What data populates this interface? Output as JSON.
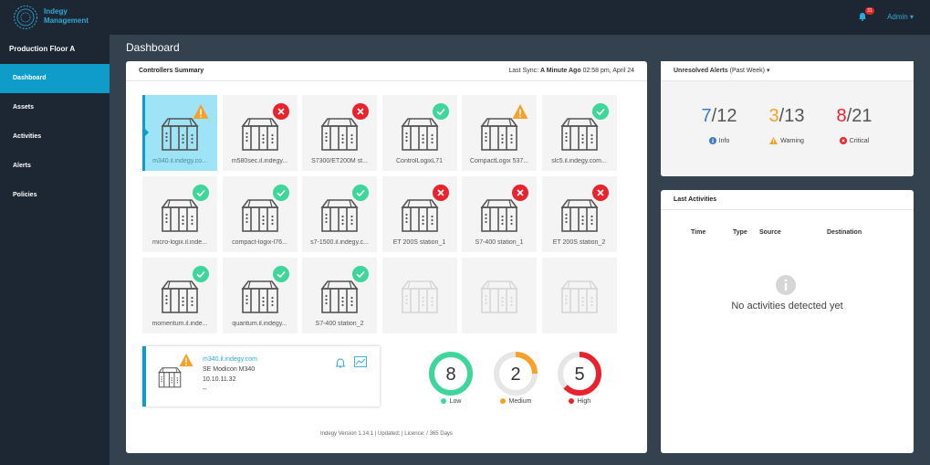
{
  "app": {
    "brand_line1": "Indegy",
    "brand_line2": "Management",
    "notification_count": "31",
    "user": "Admin"
  },
  "sidebar": {
    "site": "Production Floor A",
    "items": [
      {
        "label": "Dashboard",
        "active": true
      },
      {
        "label": "Assets"
      },
      {
        "label": "Activities"
      },
      {
        "label": "Alerts"
      },
      {
        "label": "Policies"
      }
    ]
  },
  "page": {
    "title": "Dashboard"
  },
  "controllers": {
    "title": "Controllers Summary",
    "last_sync_label": "Last Sync:",
    "last_sync_value": "A Minute Ago",
    "last_sync_time": "02:58 pm, April 24",
    "tiles": [
      {
        "label": "m340.il.indegy.co...",
        "status": "warning"
      },
      {
        "label": "m580sec.il.indegy...",
        "status": "error"
      },
      {
        "label": "S7300/ET200M st...",
        "status": "error"
      },
      {
        "label": "ControlLogixL71",
        "status": "ok"
      },
      {
        "label": "CompactLogix 537...",
        "status": "warning"
      },
      {
        "label": "slc5.il.indegy.com...",
        "status": "ok"
      },
      {
        "label": "micro-logix.il.inde...",
        "status": "ok"
      },
      {
        "label": "compact-logix-l76...",
        "status": "ok"
      },
      {
        "label": "s7-1500.il.indegy.c...",
        "status": "ok"
      },
      {
        "label": "ET 200S station_1",
        "status": "error"
      },
      {
        "label": "S7-400 station_1",
        "status": "error"
      },
      {
        "label": "ET 200S station_2",
        "status": "error"
      },
      {
        "label": "momentum.il.inde...",
        "status": "ok"
      },
      {
        "label": "quantum.il.indegy...",
        "status": "ok"
      },
      {
        "label": "S7-400 station_2",
        "status": "ok"
      }
    ],
    "detail": {
      "hostname": "m340.il.indegy.com",
      "model": "SE Modicon M340",
      "ip": "10.10.11.32",
      "extra": "--"
    },
    "risk": [
      {
        "value": 8,
        "label": "Low",
        "fraction": 1.0,
        "color": "#3fd69b"
      },
      {
        "value": 2,
        "label": "Medium",
        "fraction": 0.25,
        "color": "#f7a12c"
      },
      {
        "value": 5,
        "label": "High",
        "fraction": 0.63,
        "color": "#e8232d"
      }
    ],
    "footer": "Indegy Version 1.14.1   |   Updated:    |   Licence: / 365 Days"
  },
  "alerts": {
    "title": "Unresolved Alerts",
    "period": "(Past Week)",
    "items": [
      {
        "count": "7",
        "total": "/12",
        "label": "Info",
        "color": "#3a7bc8"
      },
      {
        "count": "3",
        "total": "/13",
        "label": "Warning",
        "color": "#f7a12c"
      },
      {
        "count": "8",
        "total": "/21",
        "label": "Critical",
        "color": "#e8232d"
      }
    ]
  },
  "activities": {
    "title": "Last Activities",
    "columns": [
      "Time",
      "Type",
      "Source",
      "Destination"
    ],
    "empty_text": "No activities detected yet"
  },
  "colors": {
    "accent": "#0f9cc8",
    "ok": "#3fd69b",
    "warning": "#f7a12c",
    "error": "#e8232d",
    "sidebar": "#1c2733"
  }
}
